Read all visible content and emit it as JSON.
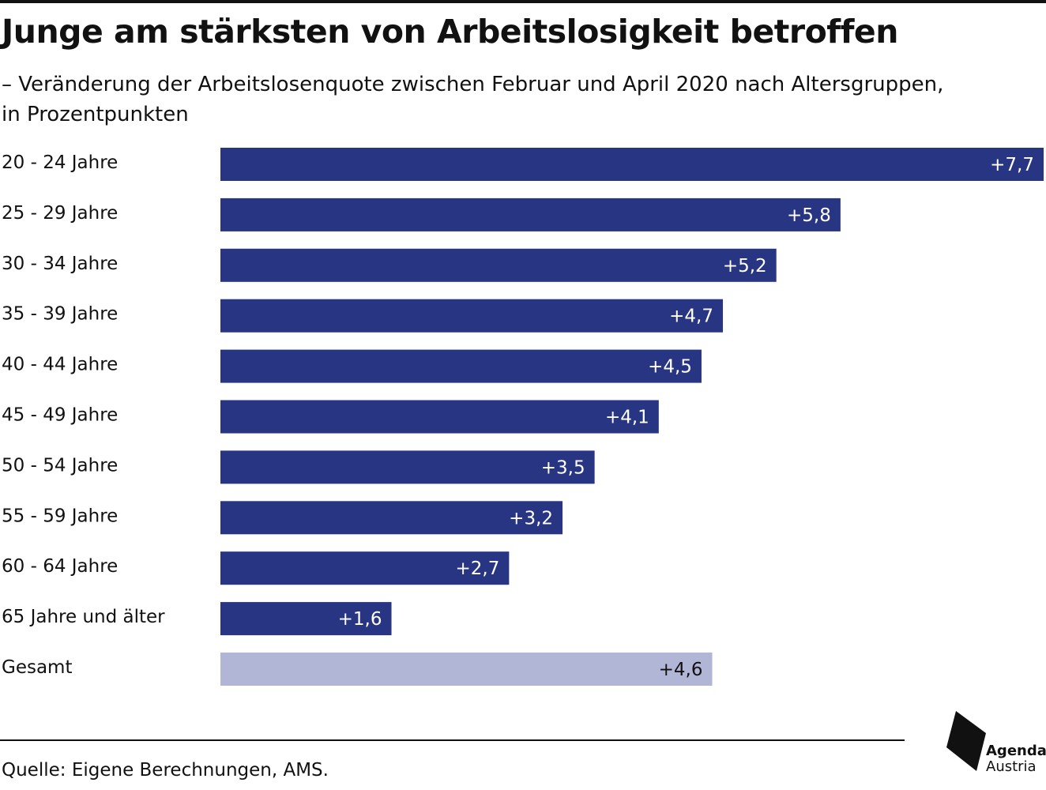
{
  "header": {
    "title": "Junge am stärksten von Arbeitslosigkeit betroffen",
    "subtitle": "– Veränderung der Arbeitslosenquote zwischen Februar und April 2020 nach Altersgruppen, in Prozentpunkten"
  },
  "chart_data": {
    "type": "bar",
    "orientation": "horizontal",
    "categories": [
      "20 - 24 Jahre",
      "25 - 29 Jahre",
      "30 - 34 Jahre",
      "35 - 39 Jahre",
      "40 - 44 Jahre",
      "45 - 49 Jahre",
      "50 - 54 Jahre",
      "55 - 59 Jahre",
      "60 - 64 Jahre",
      "65 Jahre und älter",
      "Gesamt"
    ],
    "values": [
      7.7,
      5.8,
      5.2,
      4.7,
      4.5,
      4.1,
      3.5,
      3.2,
      2.7,
      1.6,
      4.6
    ],
    "value_labels": [
      "+7,7",
      "+5,8",
      "+5,2",
      "+4,7",
      "+4,5",
      "+4,1",
      "+3,5",
      "+3,2",
      "+2,7",
      "+1,6",
      "+4,6"
    ],
    "xlim": [
      0,
      7.7
    ],
    "grid": false,
    "legend": "none",
    "colors": {
      "bar": "#283583",
      "bar_total": "#b1b6d6",
      "label_on_bar": "#ffffff",
      "label_on_total": "#111111"
    }
  },
  "footer": {
    "source": "Quelle: Eigene Berechnungen, AMS."
  },
  "logo": {
    "line1": "Agenda",
    "line2": "Austria"
  }
}
